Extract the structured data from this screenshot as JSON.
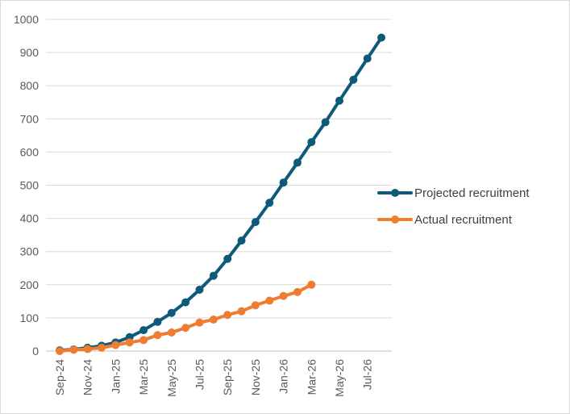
{
  "chart_data": {
    "type": "line",
    "title": "",
    "xlabel": "",
    "ylabel": "",
    "ylim": [
      0,
      1000
    ],
    "yticks": [
      "0",
      "100",
      "200",
      "300",
      "400",
      "500",
      "600",
      "700",
      "800",
      "900",
      "1000"
    ],
    "x_months": [
      "Sep-24",
      "Oct-24",
      "Nov-24",
      "Dec-24",
      "Jan-25",
      "Feb-25",
      "Mar-25",
      "Apr-25",
      "May-25",
      "Jun-25",
      "Jul-25",
      "Aug-25",
      "Sep-25",
      "Oct-25",
      "Nov-25",
      "Dec-25",
      "Jan-26",
      "Feb-26",
      "Mar-26",
      "Apr-26",
      "May-26",
      "Jun-26",
      "Jul-26",
      "Aug-26"
    ],
    "x_tick_labels": [
      "Sep-24",
      "Nov-24",
      "Jan-25",
      "Mar-25",
      "May-25",
      "Jul-25",
      "Sep-25",
      "Nov-25",
      "Jan-26",
      "Mar-26",
      "May-26",
      "Jul-26"
    ],
    "grid": true,
    "legend_position": "right",
    "series": [
      {
        "name": "Projected recruitment",
        "color": "#0e5a78",
        "values": [
          2,
          5,
          10,
          16,
          26,
          42,
          63,
          88,
          115,
          147,
          185,
          227,
          278,
          333,
          389,
          447,
          508,
          568,
          630,
          690,
          755,
          818,
          882,
          945
        ]
      },
      {
        "name": "Actual recruitment",
        "color": "#ee7d31",
        "values": [
          0,
          4,
          6,
          10,
          18,
          26,
          33,
          48,
          56,
          70,
          86,
          95,
          109,
          120,
          138,
          152,
          166,
          178,
          200
        ]
      }
    ]
  }
}
